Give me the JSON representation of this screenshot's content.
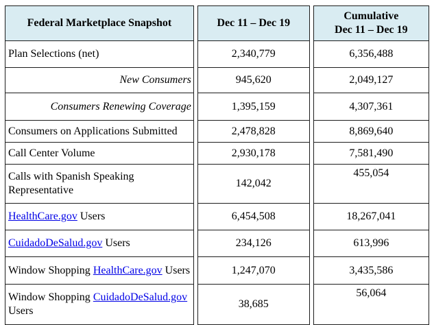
{
  "colors": {
    "header_bg": "#d9ecf2",
    "border": "#1c1c1c",
    "link": "#0000e6",
    "text": "#000000"
  },
  "table": {
    "header": {
      "label_col": "Federal Marketplace Snapshot",
      "weekly_col": "Dec 11 – Dec 19",
      "cumulative_col_line1": "Cumulative",
      "cumulative_col_line2": "Dec 11 – Dec 19"
    },
    "rows": [
      {
        "label_parts": [
          {
            "text": "Plan Selections (net)"
          }
        ],
        "style": "normal",
        "weekly": "2,340,779",
        "cumulative": "6,356,488"
      },
      {
        "label_parts": [
          {
            "text": "New Consumers"
          }
        ],
        "style": "sub-italic",
        "weekly": "945,620",
        "cumulative": "2,049,127"
      },
      {
        "label_parts": [
          {
            "text": "Consumers Renewing Coverage"
          }
        ],
        "style": "sub-italic",
        "weekly": "1,395,159",
        "cumulative": "4,307,361"
      },
      {
        "label_parts": [
          {
            "text": "Consumers on Applications Submitted"
          }
        ],
        "style": "normal",
        "weekly": "2,478,828",
        "cumulative": "8,869,640"
      },
      {
        "label_parts": [
          {
            "text": "Call Center Volume"
          }
        ],
        "style": "normal",
        "weekly": "2,930,178",
        "cumulative": "7,581,490"
      },
      {
        "label_parts": [
          {
            "text": "Calls with Spanish Speaking Representative"
          }
        ],
        "style": "normal",
        "weekly": "142,042",
        "cumulative": "455,054"
      },
      {
        "label_parts": [
          {
            "text": "HealthCare.gov",
            "link": true
          },
          {
            "text": " Users"
          }
        ],
        "style": "normal",
        "weekly": "6,454,508",
        "cumulative": "18,267,041"
      },
      {
        "label_parts": [
          {
            "text": "CuidadoDeSalud.gov",
            "link": true
          },
          {
            "text": " Users"
          }
        ],
        "style": "normal",
        "weekly": "234,126",
        "cumulative": "613,996"
      },
      {
        "label_parts": [
          {
            "text": "Window Shopping "
          },
          {
            "text": "HealthCare.gov",
            "link": true
          },
          {
            "text": " Users"
          }
        ],
        "style": "normal",
        "weekly": "1,247,070",
        "cumulative": "3,435,586"
      },
      {
        "label_parts": [
          {
            "text": "Window Shopping "
          },
          {
            "text": "CuidadoDeSalud.gov",
            "link": true
          },
          {
            "text": " Users"
          }
        ],
        "style": "normal",
        "weekly": "38,685",
        "cumulative": "56,064"
      }
    ]
  }
}
